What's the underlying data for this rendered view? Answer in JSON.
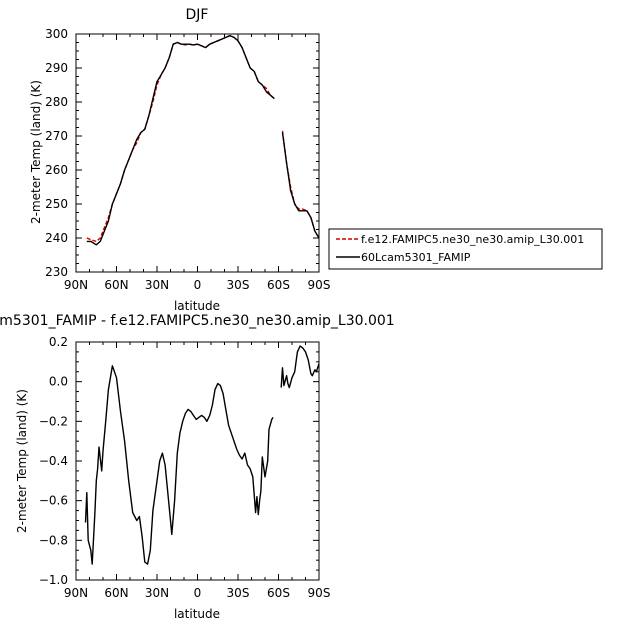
{
  "chart_data": [
    {
      "type": "line",
      "title": "DJF",
      "xlabel": "latitude",
      "ylabel": "2-meter Temp (land) (K)",
      "xlim": [
        -90,
        90
      ],
      "ylim": [
        230,
        300
      ],
      "x_ticks": [
        -90,
        -60,
        -30,
        0,
        30,
        60,
        90
      ],
      "x_tick_labels": [
        "90N",
        "60N",
        "30N",
        "0",
        "30S",
        "60S",
        "90S"
      ],
      "y_ticks": [
        230,
        240,
        250,
        260,
        270,
        280,
        290,
        300
      ],
      "y_tick_labels": [
        "230",
        "240",
        "250",
        "260",
        "270",
        "280",
        "290",
        "300"
      ],
      "legend_position": "right",
      "series": [
        {
          "name": "f.e12.FAMIPC5.ne30_ne30.amip_L30.001",
          "color": "#cc0000",
          "dash": "dashed",
          "segments": [
            [
              [
                -82,
                240
              ],
              [
                -79,
                239.5
              ],
              [
                -75,
                239
              ],
              [
                -72,
                240
              ],
              [
                -69,
                243
              ],
              [
                -66,
                246
              ],
              [
                -63,
                250
              ],
              [
                -60,
                253
              ],
              [
                -57,
                256
              ],
              [
                -54,
                260
              ],
              [
                -51,
                263
              ],
              [
                -48,
                266
              ],
              [
                -45,
                268
              ],
              [
                -42,
                271
              ],
              [
                -39,
                272
              ],
              [
                -36,
                276
              ],
              [
                -33,
                280
              ],
              [
                -30,
                285
              ],
              [
                -27,
                288
              ],
              [
                -24,
                290
              ],
              [
                -21,
                293
              ],
              [
                -18,
                297
              ],
              [
                -15,
                297.5
              ],
              [
                -12,
                297
              ],
              [
                -9,
                296.8
              ],
              [
                -6,
                297
              ],
              [
                -3,
                296.8
              ],
              [
                0,
                297
              ],
              [
                3,
                296.5
              ],
              [
                6,
                296
              ],
              [
                9,
                297
              ],
              [
                12,
                297.5
              ],
              [
                15,
                298
              ],
              [
                18,
                298.5
              ],
              [
                21,
                299
              ],
              [
                24,
                299.5
              ],
              [
                27,
                299
              ],
              [
                30,
                298
              ],
              [
                33,
                296
              ],
              [
                36,
                293
              ],
              [
                39,
                290
              ],
              [
                42,
                289
              ],
              [
                45,
                286
              ],
              [
                48,
                285
              ],
              [
                51,
                284
              ],
              [
                54,
                282
              ],
              [
                57,
                281
              ]
            ],
            [
              [
                63,
                271.5
              ],
              [
                66,
                262
              ],
              [
                69,
                255
              ],
              [
                72,
                250
              ],
              [
                75,
                248.5
              ],
              [
                78,
                248.5
              ],
              [
                81,
                248
              ],
              [
                84,
                246
              ],
              [
                87,
                242
              ],
              [
                90,
                240
              ]
            ]
          ]
        },
        {
          "name": "60Lcam5301_FAMIP",
          "color": "#000000",
          "dash": "solid",
          "segments": [
            [
              [
                -82,
                239
              ],
              [
                -79,
                239
              ],
              [
                -75,
                238
              ],
              [
                -72,
                239
              ],
              [
                -69,
                242
              ],
              [
                -66,
                245
              ],
              [
                -63,
                250
              ],
              [
                -60,
                253
              ],
              [
                -57,
                256
              ],
              [
                -54,
                260
              ],
              [
                -51,
                263
              ],
              [
                -48,
                266
              ],
              [
                -45,
                269
              ],
              [
                -42,
                271
              ],
              [
                -39,
                272
              ],
              [
                -36,
                276
              ],
              [
                -33,
                281
              ],
              [
                -30,
                286
              ],
              [
                -27,
                288
              ],
              [
                -24,
                290
              ],
              [
                -21,
                293
              ],
              [
                -18,
                297
              ],
              [
                -15,
                297.5
              ],
              [
                -12,
                297
              ],
              [
                -9,
                297
              ],
              [
                -6,
                297
              ],
              [
                -3,
                296.8
              ],
              [
                0,
                297
              ],
              [
                3,
                296.5
              ],
              [
                6,
                296
              ],
              [
                9,
                297
              ],
              [
                12,
                297.5
              ],
              [
                15,
                298
              ],
              [
                18,
                298.5
              ],
              [
                21,
                299
              ],
              [
                24,
                299.5
              ],
              [
                27,
                299
              ],
              [
                30,
                298
              ],
              [
                33,
                296
              ],
              [
                36,
                293
              ],
              [
                39,
                290
              ],
              [
                42,
                289
              ],
              [
                45,
                286
              ],
              [
                48,
                285
              ],
              [
                51,
                283
              ],
              [
                54,
                282
              ],
              [
                57,
                281
              ]
            ],
            [
              [
                63,
                271
              ],
              [
                66,
                262
              ],
              [
                69,
                254
              ],
              [
                72,
                250
              ],
              [
                75,
                248
              ],
              [
                78,
                248
              ],
              [
                81,
                248
              ],
              [
                84,
                246
              ],
              [
                87,
                242
              ],
              [
                90,
                240
              ]
            ]
          ]
        }
      ]
    },
    {
      "type": "line",
      "title": "m5301_FAMIP - f.e12.FAMIPC5.ne30_ne30.amip_L30.001",
      "xlabel": "latitude",
      "ylabel": "2-meter Temp (land) (K)",
      "xlim": [
        -90,
        90
      ],
      "ylim": [
        -1.0,
        0.2
      ],
      "x_ticks": [
        -90,
        -60,
        -30,
        0,
        30,
        60,
        90
      ],
      "x_tick_labels": [
        "90N",
        "60N",
        "30N",
        "0",
        "30S",
        "60S",
        "90S"
      ],
      "y_ticks": [
        -1.0,
        -0.8,
        -0.6,
        -0.4,
        -0.2,
        0.0,
        0.2
      ],
      "y_tick_labels": [
        "−1.0",
        "−0.8",
        "−0.6",
        "−0.4",
        "−0.2",
        "0.0",
        "0.2"
      ],
      "series": [
        {
          "color": "#000000",
          "dash": "solid",
          "segments": [
            [
              [
                -83,
                -0.71
              ],
              [
                -82,
                -0.56
              ],
              [
                -81,
                -0.8
              ],
              [
                -79,
                -0.85
              ],
              [
                -78,
                -0.92
              ],
              [
                -76,
                -0.66
              ],
              [
                -75,
                -0.5
              ],
              [
                -74,
                -0.44
              ],
              [
                -73,
                -0.33
              ],
              [
                -71,
                -0.45
              ],
              [
                -70,
                -0.35
              ],
              [
                -68,
                -0.2
              ],
              [
                -66,
                -0.04
              ],
              [
                -63,
                0.08
              ],
              [
                -60,
                0.02
              ],
              [
                -57,
                -0.15
              ],
              [
                -54,
                -0.3
              ],
              [
                -51,
                -0.5
              ],
              [
                -48,
                -0.66
              ],
              [
                -45,
                -0.7
              ],
              [
                -43,
                -0.68
              ],
              [
                -41,
                -0.78
              ],
              [
                -39,
                -0.91
              ],
              [
                -37,
                -0.92
              ],
              [
                -35,
                -0.85
              ],
              [
                -33,
                -0.65
              ],
              [
                -30,
                -0.5
              ],
              [
                -28,
                -0.4
              ],
              [
                -26,
                -0.36
              ],
              [
                -24,
                -0.42
              ],
              [
                -22,
                -0.56
              ],
              [
                -20,
                -0.7
              ],
              [
                -19,
                -0.77
              ],
              [
                -17,
                -0.6
              ],
              [
                -15,
                -0.36
              ],
              [
                -13,
                -0.26
              ],
              [
                -11,
                -0.2
              ],
              [
                -9,
                -0.16
              ],
              [
                -7,
                -0.14
              ],
              [
                -5,
                -0.15
              ],
              [
                -3,
                -0.17
              ],
              [
                -1,
                -0.19
              ],
              [
                1,
                -0.18
              ],
              [
                3,
                -0.17
              ],
              [
                5,
                -0.18
              ],
              [
                7,
                -0.2
              ],
              [
                9,
                -0.17
              ],
              [
                11,
                -0.12
              ],
              [
                13,
                -0.04
              ],
              [
                15,
                -0.01
              ],
              [
                17,
                -0.02
              ],
              [
                19,
                -0.06
              ],
              [
                21,
                -0.14
              ],
              [
                23,
                -0.22
              ],
              [
                25,
                -0.26
              ],
              [
                27,
                -0.3
              ],
              [
                29,
                -0.34
              ],
              [
                31,
                -0.37
              ],
              [
                33,
                -0.39
              ],
              [
                35,
                -0.36
              ],
              [
                37,
                -0.42
              ],
              [
                39,
                -0.44
              ],
              [
                41,
                -0.48
              ],
              [
                42,
                -0.57
              ],
              [
                43,
                -0.66
              ],
              [
                44,
                -0.58
              ],
              [
                45,
                -0.67
              ],
              [
                46,
                -0.6
              ],
              [
                47,
                -0.55
              ],
              [
                48,
                -0.38
              ],
              [
                50,
                -0.48
              ],
              [
                52,
                -0.4
              ],
              [
                53,
                -0.24
              ],
              [
                55,
                -0.19
              ],
              [
                56,
                -0.18
              ]
            ],
            [
              [
                62,
                -0.03
              ],
              [
                63,
                0.07
              ],
              [
                64,
                -0.02
              ],
              [
                66,
                0.03
              ],
              [
                67,
                -0.01
              ],
              [
                68,
                -0.03
              ],
              [
                70,
                0.02
              ],
              [
                72,
                0.05
              ],
              [
                74,
                0.15
              ],
              [
                76,
                0.18
              ],
              [
                78,
                0.17
              ],
              [
                80,
                0.15
              ],
              [
                82,
                0.11
              ],
              [
                84,
                0.04
              ],
              [
                85,
                0.03
              ],
              [
                87,
                0.06
              ],
              [
                88,
                0.05
              ],
              [
                90,
                0.09
              ]
            ]
          ]
        }
      ]
    }
  ]
}
